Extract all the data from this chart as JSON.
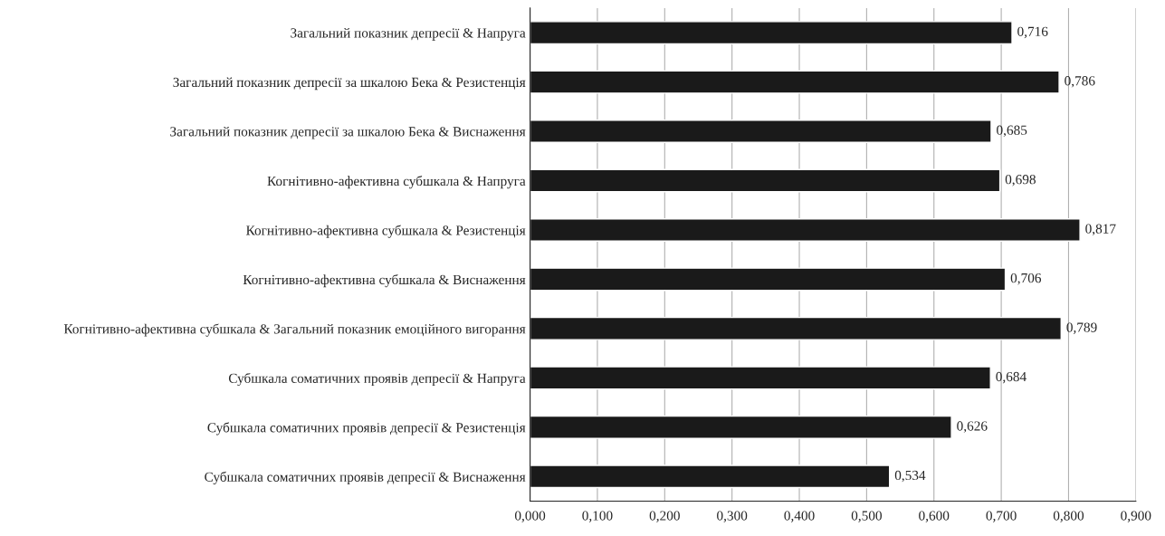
{
  "chart_data": {
    "type": "bar",
    "orientation": "horizontal",
    "categories": [
      "Загальний показник депресії & Напруга",
      "Загальний показник депресії за шкалою Бека & Резистенція",
      "Загальний показник депресії за шкалою Бека & Виснаження",
      "Когнітивно-афективна субшкала & Напруга",
      "Когнітивно-афективна субшкала & Резистенція",
      "Когнітивно-афективна субшкала & Виснаження",
      "Когнітивно-афективна субшкала & Загальний показник емоційного вигорання",
      "Субшкала соматичних проявів депресії & Напруга",
      "Субшкала соматичних проявів депресії & Резистенція",
      "Субшкала соматичних проявів депресії & Виснаження"
    ],
    "values": [
      0.716,
      0.786,
      0.685,
      0.698,
      0.817,
      0.706,
      0.789,
      0.684,
      0.626,
      0.534
    ],
    "value_labels": [
      "0,716",
      "0,786",
      "0,685",
      "0,698",
      "0,817",
      "0,706",
      "0,789",
      "0,684",
      "0,626",
      "0,534"
    ],
    "color": "#1a1a1a",
    "xlim": [
      0,
      0.9
    ],
    "xticks": [
      {
        "value": 0,
        "label": "0,000"
      },
      {
        "value": 0.1,
        "label": "0,100"
      },
      {
        "value": 0.2,
        "label": "0,200"
      },
      {
        "value": 0.3,
        "label": "0,300"
      },
      {
        "value": 0.4,
        "label": "0,400"
      },
      {
        "value": 0.5,
        "label": "0,500"
      },
      {
        "value": 0.6,
        "label": "0,600"
      },
      {
        "value": 0.7,
        "label": "0,700"
      },
      {
        "value": 0.8,
        "label": "0,800"
      },
      {
        "value": 0.9,
        "label": "0,900"
      }
    ],
    "grid": "x"
  }
}
